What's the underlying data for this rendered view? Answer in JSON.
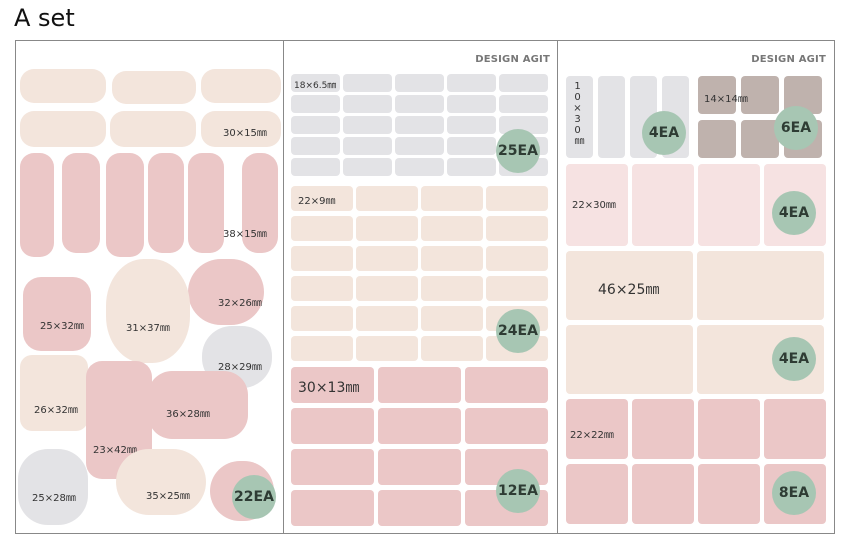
{
  "title": "A set",
  "brand": "DESIGN AGIT",
  "sheet1": {
    "labels": [
      "30×15㎜",
      "38×15㎜",
      "32×26㎜",
      "25×32㎜",
      "31×37㎜",
      "28×29㎜",
      "26×32㎜",
      "36×28㎜",
      "23×42㎜",
      "25×28㎜",
      "35×25㎜"
    ],
    "count": "22EA"
  },
  "sheet2": {
    "a_label": "18×6.5㎜",
    "a_count": "25EA",
    "b_label": "22×9㎜",
    "b_count": "24EA",
    "c_label": "30×13㎜",
    "c_count": "12EA"
  },
  "sheet3": {
    "a_label": "10×30㎜",
    "a_label_vert": [
      "1",
      "0",
      "×",
      "3",
      "0",
      "㎜"
    ],
    "a_count": "4EA",
    "b_label": "14×14㎜",
    "b_count": "6EA",
    "c_label": "22×30㎜",
    "c_count": "4EA",
    "d_label": "46×25㎜",
    "d_count": "4EA",
    "e_label": "22×22㎜",
    "e_count": "8EA"
  },
  "colors": {
    "grey": "#e3e3e6",
    "peach": "#f3e5dc",
    "pink": "#ebc7c7",
    "light_pink": "#f6e2e2",
    "brown": "#bfb2ad",
    "badge": "#a7c6b3"
  }
}
